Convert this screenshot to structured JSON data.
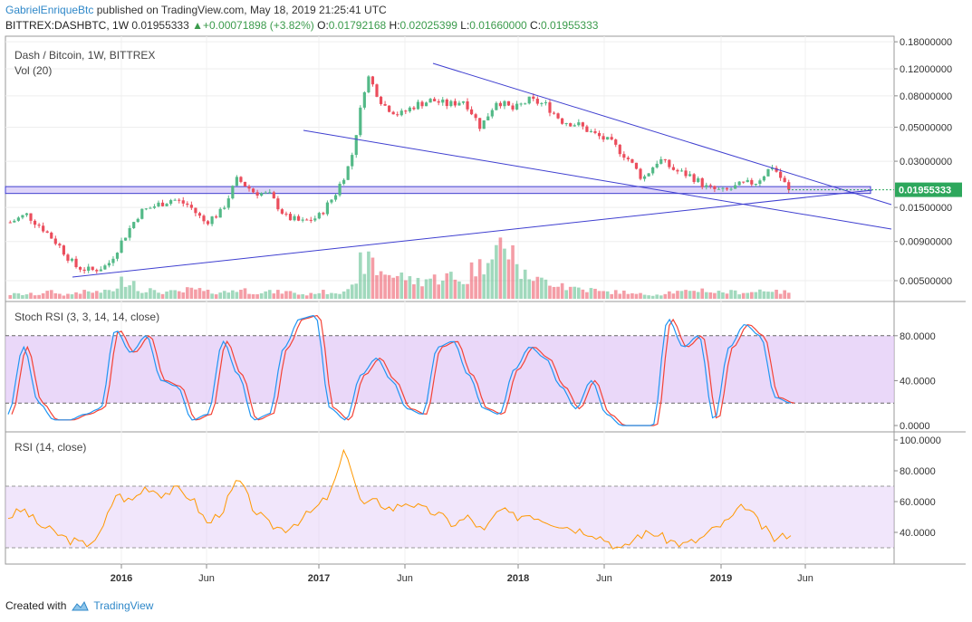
{
  "header": {
    "author": "GabrielEnriqueBtc",
    "published": "published on TradingView.com, May 18, 2019 21:25:41 UTC",
    "symbol": "BITTREX:DASHBTC, 1W",
    "last": "0.01955333",
    "change": "+0.00071898 (+3.82%)",
    "open_label": "O:",
    "open": "0.01792168",
    "high_label": "H:",
    "high": "0.02025399",
    "low_label": "L:",
    "low": "0.01660000",
    "close_label": "C:",
    "close": "0.01955333",
    "up_arrow_icon": "triangle-up-icon"
  },
  "main_pane": {
    "title": "Dash / Bitcoin, 1W, BITTREX",
    "vol_label": "Vol (20)",
    "price_badge": "0.01955333"
  },
  "stoch_pane": {
    "title": "Stoch RSI (3, 3, 14, 14, close)"
  },
  "rsi_pane": {
    "title": "RSI (14, close)"
  },
  "footer": {
    "created_with": "Created with",
    "brand": "TradingView",
    "logo_icon": "tradingview-cloud-icon"
  },
  "colors": {
    "up": "#53b987",
    "down": "#eb4d5c",
    "trend": "#3f3fd0",
    "stoch_k": "#2196f3",
    "stoch_d": "#f44336",
    "rsi": "#ff9800",
    "band": "#e1c8f7",
    "badge": "#2da75c"
  },
  "chart_data": [
    {
      "type": "candlestick",
      "title": "Dash / Bitcoin, 1W, BITTREX",
      "scale": "log",
      "y_ticks": [
        "0.18000000",
        "0.12000000",
        "0.08000000",
        "0.05000000",
        "0.03000000",
        "0.01500000",
        "0.00900000",
        "0.00500000"
      ],
      "y_tick_values": [
        0.18,
        0.12,
        0.08,
        0.05,
        0.03,
        0.015,
        0.009,
        0.005
      ],
      "x_ticks": [
        "2016",
        "Jun",
        "2017",
        "Jun",
        "2018",
        "Jun",
        "2019",
        "Jun"
      ],
      "last_price": 0.01955333,
      "price_path": [
        [
          "2015-08",
          0.012
        ],
        [
          "2015-09",
          0.0135
        ],
        [
          "2015-10",
          0.011
        ],
        [
          "2015-11",
          0.0085
        ],
        [
          "2015-11b",
          0.0062
        ],
        [
          "2015-12",
          0.0058
        ],
        [
          "2016-01",
          0.0063
        ],
        [
          "2016-01b",
          0.0095
        ],
        [
          "2016-02",
          0.014
        ],
        [
          "2016-03",
          0.0155
        ],
        [
          "2016-04",
          0.017
        ],
        [
          "2016-05",
          0.0155
        ],
        [
          "2016-06",
          0.012
        ],
        [
          "2016-07",
          0.014
        ],
        [
          "2016-08",
          0.023
        ],
        [
          "2016-09",
          0.019
        ],
        [
          "2016-10",
          0.018
        ],
        [
          "2016-11",
          0.013
        ],
        [
          "2016-12",
          0.012
        ],
        [
          "2017-01",
          0.013
        ],
        [
          "2017-02",
          0.018
        ],
        [
          "2017-03",
          0.03
        ],
        [
          "2017-03b",
          0.11
        ],
        [
          "2017-04",
          0.07
        ],
        [
          "2017-05",
          0.06
        ],
        [
          "2017-06",
          0.07
        ],
        [
          "2017-07",
          0.075
        ],
        [
          "2017-08",
          0.07
        ],
        [
          "2017-09",
          0.075
        ],
        [
          "2017-10",
          0.05
        ],
        [
          "2017-11",
          0.075
        ],
        [
          "2017-12",
          0.065
        ],
        [
          "2018-01",
          0.075
        ],
        [
          "2018-02",
          0.07
        ],
        [
          "2018-03",
          0.055
        ],
        [
          "2018-04",
          0.052
        ],
        [
          "2018-05",
          0.045
        ],
        [
          "2018-06",
          0.04
        ],
        [
          "2018-07",
          0.032
        ],
        [
          "2018-08",
          0.023
        ],
        [
          "2018-09",
          0.031
        ],
        [
          "2018-10",
          0.026
        ],
        [
          "2018-11",
          0.024
        ],
        [
          "2018-12",
          0.02
        ],
        [
          "2019-01",
          0.019
        ],
        [
          "2019-02",
          0.021
        ],
        [
          "2019-03",
          0.022
        ],
        [
          "2019-04",
          0.028
        ],
        [
          "2019-05",
          0.0195
        ]
      ],
      "volume_relative": [
        2,
        2,
        3,
        2,
        3,
        3,
        4,
        8,
        4,
        3,
        3,
        4,
        3,
        3,
        4,
        3,
        3,
        3,
        2,
        3,
        3,
        5,
        16,
        12,
        10,
        8,
        9,
        10,
        8,
        14,
        24,
        20,
        10,
        8,
        7,
        5,
        4,
        3,
        3,
        2,
        2,
        3,
        3,
        4,
        3,
        3,
        3,
        4,
        3
      ]
    },
    {
      "type": "line",
      "title": "Stoch RSI (3, 3, 14, 14, close)",
      "y_ticks": [
        "80.0000",
        "40.0000",
        "0.0000"
      ],
      "y_tick_values": [
        80,
        40,
        0
      ],
      "band": [
        20,
        80
      ],
      "series": [
        {
          "values": [
            10,
            70,
            20,
            5,
            5,
            10,
            15,
            85,
            65,
            80,
            40,
            35,
            5,
            10,
            75,
            45,
            5,
            10,
            70,
            95,
            98,
            15,
            5,
            45,
            60,
            40,
            15,
            10,
            70,
            75,
            45,
            15,
            10,
            50,
            70,
            60,
            35,
            15,
            40,
            10,
            0,
            0,
            0,
            95,
            70,
            80,
            5,
            70,
            90,
            80,
            25,
            20
          ]
        }
      ]
    },
    {
      "type": "line",
      "title": "RSI (14, close)",
      "y_ticks": [
        "100.0000",
        "80.0000",
        "60.0000",
        "40.0000"
      ],
      "y_tick_values": [
        100,
        80,
        60,
        40
      ],
      "band": [
        30,
        70
      ],
      "series": [
        {
          "values": [
            50,
            55,
            45,
            40,
            35,
            32,
            38,
            65,
            60,
            70,
            65,
            68,
            62,
            45,
            55,
            75,
            55,
            45,
            42,
            48,
            55,
            65,
            95,
            58,
            60,
            55,
            60,
            55,
            52,
            45,
            50,
            40,
            55,
            50,
            52,
            48,
            45,
            42,
            40,
            35,
            28,
            38,
            40,
            35,
            32,
            35,
            42,
            48,
            58,
            45,
            35,
            40
          ]
        }
      ]
    }
  ]
}
